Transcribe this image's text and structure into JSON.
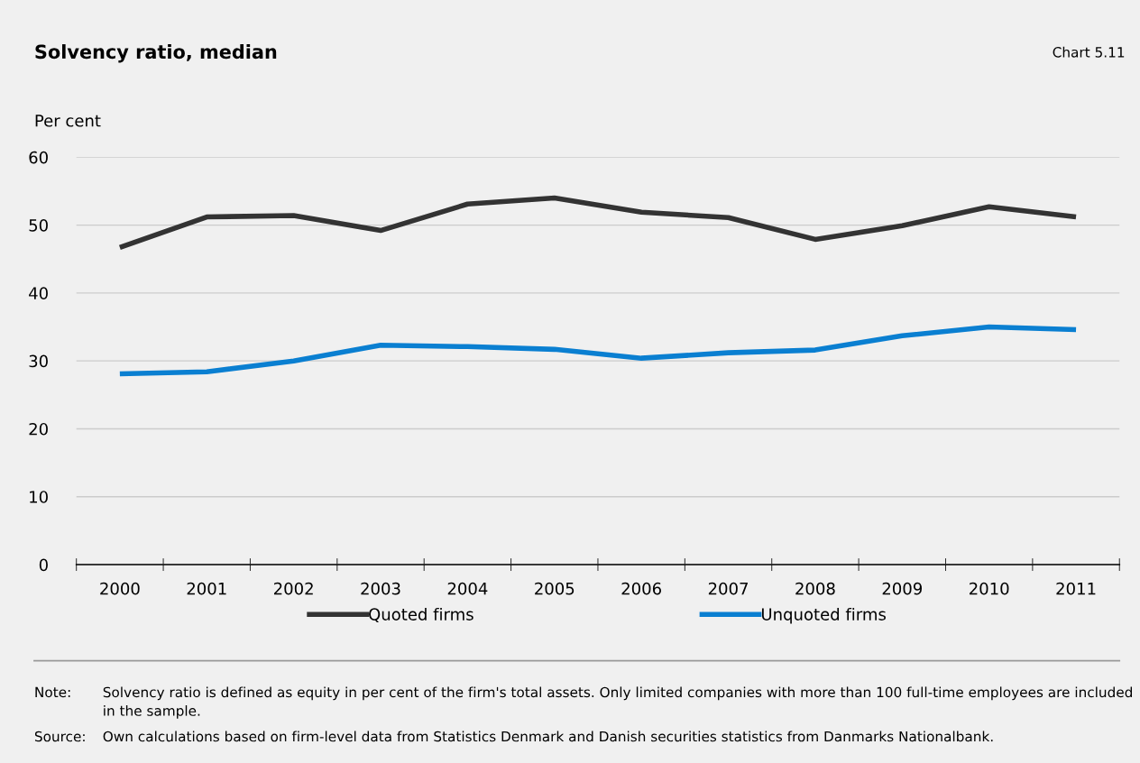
{
  "chart_data": {
    "type": "line",
    "title": "Solvency ratio, median",
    "subtitle": "Chart 5.11",
    "ylabel": "Per cent",
    "categories": [
      "2000",
      "2001",
      "2002",
      "2003",
      "2004",
      "2005",
      "2006",
      "2007",
      "2008",
      "2009",
      "2010",
      "2011"
    ],
    "series": [
      {
        "name": "Quoted firms",
        "color": "#333333",
        "values": [
          46.7,
          51.2,
          51.4,
          49.2,
          53.1,
          54.0,
          51.9,
          51.1,
          47.9,
          49.9,
          52.7,
          51.2
        ]
      },
      {
        "name": "Unquoted firms",
        "color": "#0a7fd1",
        "values": [
          28.1,
          28.4,
          30.0,
          32.3,
          32.1,
          31.7,
          30.4,
          31.2,
          31.6,
          33.7,
          35.0,
          34.6
        ]
      }
    ],
    "ylim": [
      0,
      60
    ],
    "yticks": [
      0,
      10,
      20,
      30,
      40,
      50,
      60
    ],
    "grid": "y",
    "legend": "bottom",
    "marker": "none",
    "line_style": "solid",
    "annotations": [
      "Note: Solvency ratio is defined as equity in per cent of the firm's total assets. Only limited companies with more than 100 full-time employees are included in the sample.",
      "Source: Own calculations based on firm-level data from Statistics Denmark and Danish securities statistics from Danmarks Nationalbank."
    ]
  }
}
